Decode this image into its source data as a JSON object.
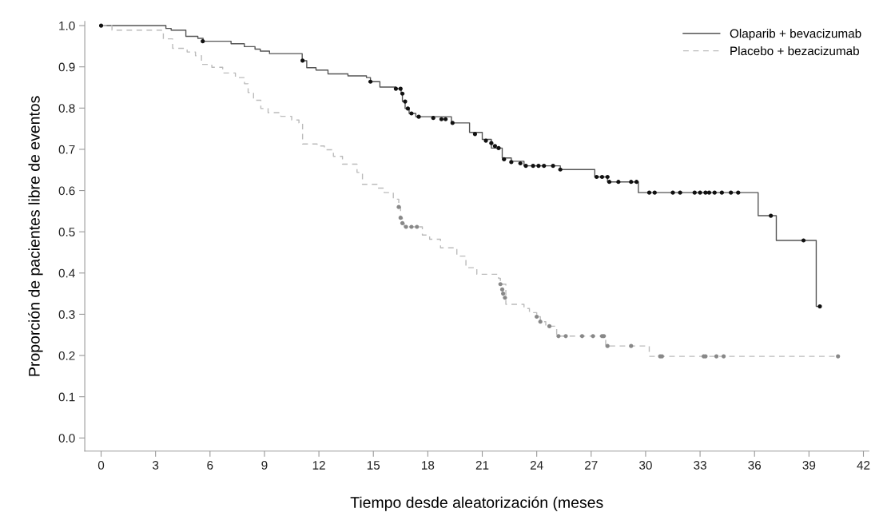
{
  "chart_data": {
    "type": "step",
    "xlabel": "Tiempo desde aleatorización (meses",
    "ylabel": "Proporción de pacientes libre de eventos",
    "xlim": [
      -0.9,
      42.3
    ],
    "ylim": [
      -0.032,
      1.01
    ],
    "xticks": [
      0,
      3,
      6,
      9,
      12,
      15,
      18,
      21,
      24,
      27,
      30,
      33,
      36,
      39,
      42
    ],
    "yticks": [
      {
        "value": 0,
        "label": "0.0"
      },
      0.1,
      0.2,
      0.3,
      0.4,
      0.5,
      0.6,
      0.7,
      0.8,
      0.9,
      {
        "value": 1,
        "label": "1.0"
      }
    ],
    "legend": "top right",
    "grid": false,
    "series": [
      {
        "name": "Olaparib + bevacizumab",
        "color": "#555555",
        "line_style": "solid",
        "x": [
          0,
          3.57,
          3.86,
          4.67,
          5.33,
          5.62,
          7.16,
          7.89,
          8.48,
          8.77,
          9.28,
          11.08,
          11.33,
          11.84,
          12.5,
          13.6,
          14.62,
          14.84,
          15.36,
          16.24,
          16.53,
          16.6,
          16.75,
          16.97,
          17.34,
          19.3,
          20.3,
          21.0,
          21.5,
          22.1,
          22.6,
          23.3,
          25.3,
          27.2,
          27.9,
          29.6,
          36.2,
          37.2,
          39.4,
          39.6
        ],
        "values": [
          1.0,
          0.993,
          0.989,
          0.974,
          0.969,
          0.962,
          0.956,
          0.949,
          0.943,
          0.938,
          0.932,
          0.915,
          0.898,
          0.892,
          0.883,
          0.878,
          0.874,
          0.864,
          0.851,
          0.847,
          0.835,
          0.816,
          0.799,
          0.787,
          0.779,
          0.764,
          0.741,
          0.724,
          0.703,
          0.679,
          0.671,
          0.66,
          0.651,
          0.633,
          0.621,
          0.595,
          0.539,
          0.479,
          0.319,
          0.319
        ]
      },
      {
        "name": "Placebo + bezacizumab",
        "color": "#bbbbbb",
        "line_style": "dashed",
        "x": [
          0,
          0.6,
          3.43,
          3.94,
          4.74,
          5.2,
          5.53,
          6.1,
          6.7,
          7.4,
          7.9,
          8.1,
          8.4,
          8.8,
          9.2,
          9.9,
          10.5,
          10.9,
          11.1,
          11.9,
          12.3,
          12.8,
          13.3,
          14.1,
          14.4,
          15.2,
          15.6,
          16.1,
          16.4,
          16.5,
          16.6,
          16.7,
          17.7,
          18.1,
          18.7,
          19.6,
          20.1,
          20.7,
          21.9,
          22.0,
          22.3,
          23.3,
          23.6,
          24.0,
          24.2,
          24.5,
          25.1,
          27.8,
          30.2,
          40.6
        ],
        "values": [
          1.0,
          0.989,
          0.968,
          0.945,
          0.936,
          0.927,
          0.906,
          0.899,
          0.885,
          0.874,
          0.859,
          0.838,
          0.819,
          0.799,
          0.789,
          0.78,
          0.771,
          0.764,
          0.713,
          0.708,
          0.699,
          0.683,
          0.664,
          0.644,
          0.615,
          0.606,
          0.595,
          0.579,
          0.56,
          0.534,
          0.521,
          0.512,
          0.492,
          0.482,
          0.461,
          0.441,
          0.413,
          0.397,
          0.387,
          0.373,
          0.324,
          0.314,
          0.304,
          0.294,
          0.282,
          0.271,
          0.247,
          0.223,
          0.198,
          0.198
        ]
      },
      {
        "type": "scatter",
        "color": "#111111",
        "marker": "circle",
        "x": [
          0,
          5.6,
          11.1,
          14.84,
          16.24,
          16.5,
          16.6,
          16.75,
          16.9,
          17.1,
          17.5,
          18.3,
          18.75,
          18.98,
          19.36,
          20.6,
          21.2,
          21.5,
          21.7,
          21.9,
          22.2,
          22.6,
          23.1,
          23.4,
          23.8,
          24.1,
          24.4,
          24.9,
          25.3,
          27.3,
          27.6,
          27.9,
          28.0,
          28.5,
          29.2,
          29.5,
          30.2,
          30.5,
          31.5,
          31.9,
          32.7,
          33.0,
          33.3,
          33.5,
          33.8,
          34.2,
          34.7,
          35.1,
          36.9,
          38.7,
          39.6
        ],
        "values": [
          1.0,
          0.962,
          0.915,
          0.864,
          0.847,
          0.847,
          0.835,
          0.816,
          0.799,
          0.787,
          0.779,
          0.776,
          0.773,
          0.773,
          0.764,
          0.737,
          0.721,
          0.715,
          0.708,
          0.703,
          0.676,
          0.669,
          0.666,
          0.66,
          0.66,
          0.66,
          0.66,
          0.66,
          0.651,
          0.633,
          0.633,
          0.633,
          0.621,
          0.621,
          0.621,
          0.621,
          0.595,
          0.595,
          0.595,
          0.595,
          0.595,
          0.595,
          0.595,
          0.595,
          0.595,
          0.595,
          0.595,
          0.595,
          0.539,
          0.479,
          0.319
        ]
      },
      {
        "type": "scatter",
        "color": "#888888",
        "marker": "circle",
        "x": [
          16.4,
          16.5,
          16.6,
          16.8,
          17.1,
          17.4,
          22.0,
          22.1,
          22.15,
          22.25,
          24.0,
          24.2,
          24.7,
          25.2,
          25.6,
          26.5,
          27.1,
          27.6,
          27.7,
          27.9,
          29.2,
          30.8,
          30.9,
          33.2,
          33.3,
          33.9,
          34.3,
          40.6
        ],
        "values": [
          0.56,
          0.534,
          0.521,
          0.512,
          0.512,
          0.512,
          0.373,
          0.36,
          0.35,
          0.34,
          0.294,
          0.282,
          0.271,
          0.247,
          0.247,
          0.247,
          0.247,
          0.247,
          0.247,
          0.223,
          0.223,
          0.198,
          0.198,
          0.198,
          0.198,
          0.198,
          0.198,
          0.198
        ]
      }
    ]
  }
}
